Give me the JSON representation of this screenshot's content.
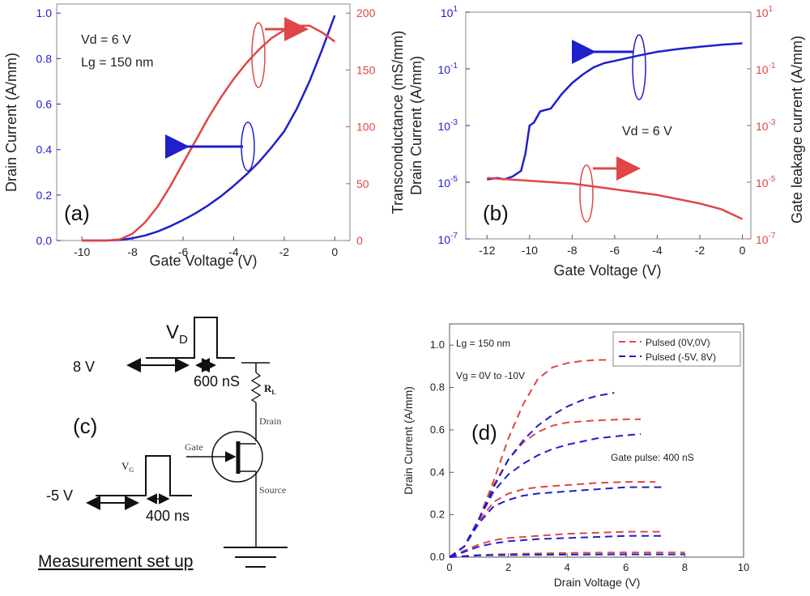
{
  "colors": {
    "blue": "#1f1fcc",
    "red": "#e04646",
    "black": "#222222",
    "green_dark": "#1a1a1a"
  },
  "chart_data": [
    {
      "id": "a",
      "type": "line",
      "panel_label": "(a)",
      "xlabel": "Gate Voltage (V)",
      "ylabel_left": "Drain Current (A/mm)",
      "ylabel_right": "Transconductance (mS/mm)",
      "xlim": [
        -11,
        0.6
      ],
      "ylim_left": [
        0,
        1.04
      ],
      "ylim_right": [
        0,
        208
      ],
      "xticks": [
        -10,
        -8,
        -6,
        -4,
        -2,
        0
      ],
      "xtick_labels": [
        "-10",
        "-8",
        "-6",
        "-4",
        "-2",
        "0"
      ],
      "yticks_left": [
        0,
        0.2,
        0.4,
        0.6,
        0.8,
        1.0
      ],
      "ytick_labels_left": [
        "0.0",
        "0.2",
        "0.4",
        "0.6",
        "0.8",
        "1.0"
      ],
      "yticks_right": [
        0,
        50,
        100,
        150,
        200
      ],
      "ytick_labels_right": [
        "0",
        "50",
        "100",
        "150",
        "200"
      ],
      "annotations": [
        "Vd = 6 V",
        "Lg = 150 nm"
      ],
      "series": [
        {
          "name": "Drain Current",
          "axis": "left",
          "color": "#1f1fcc",
          "x": [
            -10,
            -9,
            -8.5,
            -8,
            -7.5,
            -7,
            -6.5,
            -6,
            -5.5,
            -5,
            -4.5,
            -4,
            -3.5,
            -3,
            -2.5,
            -2,
            -1.5,
            -1,
            -0.5,
            0
          ],
          "y": [
            0,
            0,
            0.003,
            0.01,
            0.022,
            0.04,
            0.063,
            0.09,
            0.12,
            0.155,
            0.195,
            0.24,
            0.29,
            0.345,
            0.41,
            0.48,
            0.58,
            0.7,
            0.84,
            0.99
          ]
        },
        {
          "name": "Transconductance",
          "axis": "right",
          "color": "#e04646",
          "x": [
            -10,
            -9,
            -8.5,
            -8,
            -7.5,
            -7,
            -6.5,
            -6,
            -5.5,
            -5,
            -4.5,
            -4,
            -3.5,
            -3,
            -2.5,
            -2,
            -1.5,
            -1,
            -0.5,
            0
          ],
          "y": [
            0,
            0,
            1,
            6,
            16,
            30,
            48,
            68,
            88,
            108,
            126,
            142,
            156,
            168,
            178,
            185,
            189,
            189,
            183,
            175
          ]
        }
      ]
    },
    {
      "id": "b",
      "type": "line",
      "panel_label": "(b)",
      "xlabel": "Gate Voltage (V)",
      "ylabel_left": "Drain Current (A/mm)",
      "ylabel_right": "Gate leakage current (A/mm)",
      "xlim": [
        -13,
        0.4
      ],
      "ylim_log_exp": [
        -7,
        1
      ],
      "xticks": [
        -12,
        -10,
        -8,
        -6,
        -4,
        -2,
        0
      ],
      "xtick_labels": [
        "-12",
        "-10",
        "-8",
        "-6",
        "-4",
        "-2",
        "0"
      ],
      "ytick_exps": [
        1,
        -1,
        -3,
        -5,
        -7
      ],
      "ytick_base": "10",
      "ytick_exp_labels": [
        "1",
        "-1",
        "-3",
        "-5",
        "-7"
      ],
      "annotations": [
        "Vd = 6 V"
      ],
      "series": [
        {
          "name": "Drain Current",
          "axis": "left",
          "color": "#1f1fcc",
          "x": [
            -12,
            -11.5,
            -11.2,
            -10.8,
            -10.4,
            -10.2,
            -10.0,
            -9.8,
            -9.5,
            -9.0,
            -8.5,
            -8.0,
            -7.5,
            -7.0,
            -6.5,
            -6.0,
            -5.0,
            -4.0,
            -3.0,
            -2.0,
            -1.0,
            0
          ],
          "y_exp": [
            -4.9,
            -4.85,
            -4.9,
            -4.8,
            -4.6,
            -4.0,
            -3.0,
            -2.9,
            -2.5,
            -2.4,
            -1.9,
            -1.5,
            -1.2,
            -0.95,
            -0.8,
            -0.72,
            -0.55,
            -0.4,
            -0.3,
            -0.22,
            -0.15,
            -0.1
          ]
        },
        {
          "name": "Gate leakage current",
          "axis": "right",
          "color": "#e04646",
          "x": [
            -12,
            -11,
            -10,
            -9,
            -8,
            -7,
            -6,
            -5,
            -4,
            -3,
            -2,
            -1,
            0
          ],
          "y_exp": [
            -4.85,
            -4.9,
            -4.95,
            -5.0,
            -5.05,
            -5.15,
            -5.25,
            -5.35,
            -5.45,
            -5.6,
            -5.75,
            -5.95,
            -6.3
          ]
        }
      ]
    },
    {
      "id": "d",
      "type": "line",
      "panel_label": "(d)",
      "xlabel": "Drain Voltage (V)",
      "ylabel": "Drain Current (A/mm)",
      "xlim": [
        0,
        10
      ],
      "ylim": [
        0,
        1.1
      ],
      "xticks": [
        0,
        2,
        4,
        6,
        8,
        10
      ],
      "xtick_labels": [
        "0",
        "2",
        "4",
        "6",
        "8",
        "10"
      ],
      "yticks": [
        0.0,
        0.2,
        0.4,
        0.6,
        0.8,
        1.0
      ],
      "ytick_labels": [
        "0.0",
        "0.2",
        "0.4",
        "0.6",
        "0.8",
        "1.0"
      ],
      "annotations": [
        "Lg = 150 nm",
        "Vg = 0V to -10V",
        "Gate pulse: 400 nS"
      ],
      "legend": [
        "Pulsed (0V,0V)",
        "Pulsed (-5V, 8V)"
      ],
      "series": [
        {
          "name": "Pulsed (0V,0V)",
          "color": "#e04646",
          "x": [
            0,
            0.5,
            1,
            1.5,
            2,
            2.5,
            3,
            3.5,
            4,
            4.5,
            5,
            5.5
          ],
          "y": [
            0,
            0.05,
            0.18,
            0.36,
            0.56,
            0.72,
            0.84,
            0.895,
            0.915,
            0.925,
            0.93,
            0.93
          ]
        },
        {
          "name": "Pulsed (0V,0V)",
          "color": "#e04646",
          "x": [
            0,
            0.5,
            1,
            1.5,
            2,
            2.5,
            3,
            3.5,
            4,
            5,
            6,
            6.5
          ],
          "y": [
            0,
            0.05,
            0.18,
            0.34,
            0.46,
            0.54,
            0.59,
            0.62,
            0.635,
            0.645,
            0.65,
            0.65
          ]
        },
        {
          "name": "Pulsed (0V,0V)",
          "color": "#e04646",
          "x": [
            0,
            0.5,
            1,
            1.5,
            2,
            2.5,
            3,
            4,
            5,
            6,
            7
          ],
          "y": [
            0,
            0.05,
            0.17,
            0.26,
            0.3,
            0.32,
            0.33,
            0.34,
            0.35,
            0.355,
            0.355
          ]
        },
        {
          "name": "Pulsed (0V,0V)",
          "color": "#e04646",
          "x": [
            0,
            0.5,
            1,
            1.5,
            2,
            3,
            4,
            5,
            6,
            7.2
          ],
          "y": [
            0,
            0.03,
            0.06,
            0.08,
            0.09,
            0.1,
            0.11,
            0.115,
            0.12,
            0.12
          ]
        },
        {
          "name": "Pulsed (0V,0V)",
          "color": "#e04646",
          "x": [
            0,
            1,
            2,
            4,
            6,
            8
          ],
          "y": [
            0,
            0.01,
            0.015,
            0.02,
            0.022,
            0.022
          ]
        },
        {
          "name": "Pulsed (-5V, 8V)",
          "color": "#1f1fcc",
          "x": [
            0,
            0.5,
            1,
            1.5,
            2,
            2.5,
            3,
            3.5,
            4,
            4.5,
            5,
            5.6
          ],
          "y": [
            0,
            0.05,
            0.18,
            0.33,
            0.46,
            0.55,
            0.62,
            0.67,
            0.71,
            0.74,
            0.76,
            0.775
          ]
        },
        {
          "name": "Pulsed (-5V, 8V)",
          "color": "#1f1fcc",
          "x": [
            0,
            0.5,
            1,
            1.5,
            2,
            2.5,
            3,
            3.5,
            4,
            5,
            6,
            6.5
          ],
          "y": [
            0,
            0.05,
            0.18,
            0.31,
            0.39,
            0.44,
            0.48,
            0.51,
            0.53,
            0.56,
            0.575,
            0.58
          ]
        },
        {
          "name": "Pulsed (-5V, 8V)",
          "color": "#1f1fcc",
          "x": [
            0,
            0.5,
            1,
            1.5,
            2,
            2.5,
            3,
            4,
            5,
            6,
            7.2
          ],
          "y": [
            0,
            0.05,
            0.16,
            0.24,
            0.27,
            0.29,
            0.3,
            0.31,
            0.32,
            0.33,
            0.33
          ]
        },
        {
          "name": "Pulsed (-5V, 8V)",
          "color": "#1f1fcc",
          "x": [
            0,
            0.5,
            1,
            1.5,
            2,
            3,
            4,
            5,
            6,
            7.2
          ],
          "y": [
            0,
            0.025,
            0.05,
            0.065,
            0.075,
            0.085,
            0.09,
            0.095,
            0.1,
            0.1
          ]
        },
        {
          "name": "Pulsed (-5V, 8V)",
          "color": "#1f1fcc",
          "x": [
            0,
            1,
            2,
            4,
            6,
            8
          ],
          "y": [
            0,
            0.008,
            0.01,
            0.012,
            0.013,
            0.013
          ]
        }
      ]
    }
  ],
  "panel_c": {
    "panel_label": "(c)",
    "vd_label": "V",
    "vd_sub": "D",
    "vd_level": "8 V",
    "vd_width": "600 nS",
    "vg_label": "V",
    "vg_sub": "G",
    "vg_level": "-5 V",
    "vg_width": "400 ns",
    "rl_label": "R",
    "rl_sub": "L",
    "drain_label": "Drain",
    "gate_label": "Gate",
    "source_label": "Source",
    "caption": "Measurement set up"
  }
}
